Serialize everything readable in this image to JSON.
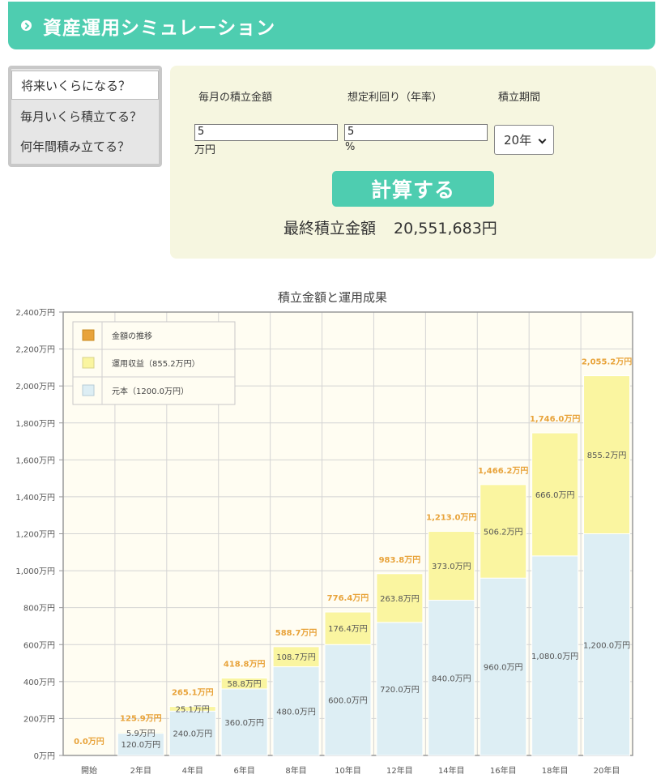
{
  "header": {
    "title": "資産運用シミュレーション"
  },
  "tabs": [
    {
      "label": "将来いくらになる？",
      "active": true
    },
    {
      "label": "毎月いくら積立てる？",
      "active": false
    },
    {
      "label": "何年間積み立てる？",
      "active": false
    }
  ],
  "form": {
    "monthly_label": "毎月の積立金額",
    "monthly_value": "5",
    "monthly_unit": "万円",
    "rate_label": "想定利回り（年率）",
    "rate_value": "5",
    "rate_unit": "%",
    "period_label": "積立期間",
    "period_value": "20年",
    "calc_button": "計算する",
    "result_label": "最終積立金額",
    "result_value": "20,551,683円"
  },
  "colors": {
    "accent": "#4ecdb0",
    "panel": "#f6f6e0",
    "principal": "#ddeef4",
    "gain": "#faf5a0",
    "total": "#e8a33a"
  },
  "chart_data": {
    "type": "bar",
    "stacked": true,
    "title": "積立金額と運用成果",
    "categories": [
      "開始",
      "2年目",
      "4年目",
      "6年目",
      "8年目",
      "10年目",
      "12年目",
      "14年目",
      "16年目",
      "18年目",
      "20年目"
    ],
    "series": [
      {
        "name": "元本（1200.0万円）",
        "values": [
          0,
          120,
          240,
          360,
          480,
          600,
          720,
          840,
          960,
          1080,
          1200
        ],
        "labels": [
          "",
          "120.0万円",
          "240.0万円",
          "360.0万円",
          "480.0万円",
          "600.0万円",
          "720.0万円",
          "840.0万円",
          "960.0万円",
          "1,080.0万円",
          "1,200.0万円"
        ]
      },
      {
        "name": "運用収益（855.2万円）",
        "values": [
          0,
          5.9,
          25.1,
          58.8,
          108.7,
          176.4,
          263.8,
          373.0,
          506.2,
          666.0,
          855.2
        ],
        "labels": [
          "",
          "5.9万円",
          "25.1万円",
          "58.8万円",
          "108.7万円",
          "176.4万円",
          "263.8万円",
          "373.0万円",
          "506.2万円",
          "666.0万円",
          "855.2万円"
        ]
      }
    ],
    "totals": {
      "name": "金額の推移",
      "values": [
        0,
        125.9,
        265.1,
        418.8,
        588.7,
        776.4,
        983.8,
        1213.0,
        1466.2,
        1746.0,
        2055.2
      ],
      "labels": [
        "0.0万円",
        "125.9万円",
        "265.1万円",
        "418.8万円",
        "588.7万円",
        "776.4万円",
        "983.8万円",
        "1,213.0万円",
        "1,466.2万円",
        "1,746.0万円",
        "2,055.2万円"
      ]
    },
    "yticks": [
      0,
      200,
      400,
      600,
      800,
      1000,
      1200,
      1400,
      1600,
      1800,
      2000,
      2200,
      2400
    ],
    "ytick_labels": [
      "0万円",
      "200万円",
      "400万円",
      "600万円",
      "800万円",
      "1,000万円",
      "1,200万円",
      "1,400万円",
      "1,600万円",
      "1,800万円",
      "2,000万円",
      "2,200万円",
      "2,400万円"
    ],
    "ylim": [
      0,
      2400
    ],
    "grid": true,
    "legend_position": "top-left"
  }
}
